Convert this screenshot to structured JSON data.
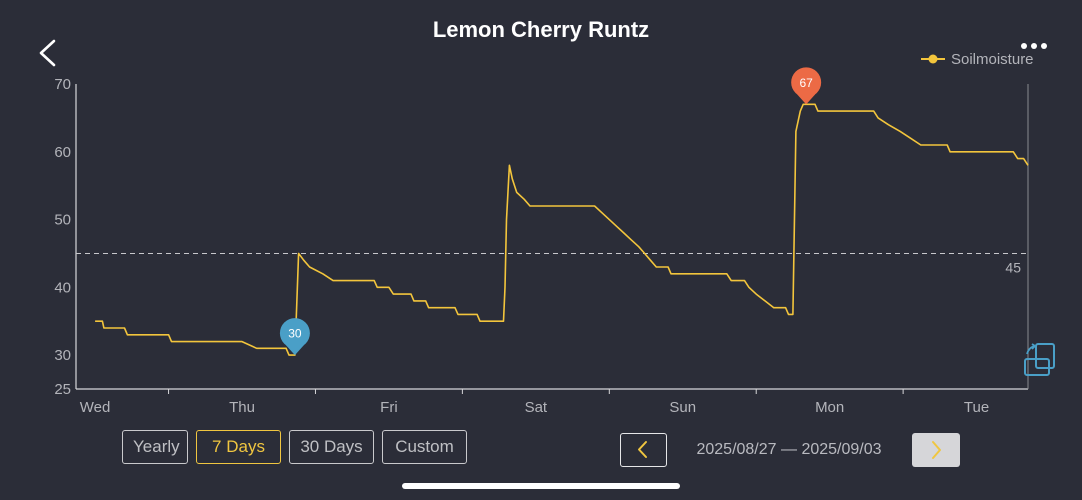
{
  "header": {
    "title": "Lemon Cherry Runtz",
    "back_icon": "chevron-left-icon",
    "more_icon": "more-dots-icon"
  },
  "chart_data": {
    "type": "line",
    "series": [
      {
        "name": "Soilmoisture",
        "color": "#f3c53c",
        "points": [
          [
            0.0,
            35
          ],
          [
            0.05,
            35
          ],
          [
            0.06,
            34
          ],
          [
            0.2,
            34
          ],
          [
            0.22,
            33
          ],
          [
            0.5,
            33
          ],
          [
            0.52,
            32
          ],
          [
            1.0,
            32
          ],
          [
            1.1,
            31
          ],
          [
            1.3,
            31
          ],
          [
            1.32,
            30
          ],
          [
            1.36,
            30
          ],
          [
            1.385,
            45
          ],
          [
            1.42,
            44
          ],
          [
            1.46,
            43
          ],
          [
            1.55,
            42
          ],
          [
            1.62,
            41
          ],
          [
            1.9,
            41
          ],
          [
            1.92,
            40
          ],
          [
            2.0,
            40
          ],
          [
            2.03,
            39
          ],
          [
            2.15,
            39
          ],
          [
            2.17,
            38
          ],
          [
            2.25,
            38
          ],
          [
            2.27,
            37
          ],
          [
            2.45,
            37
          ],
          [
            2.47,
            36
          ],
          [
            2.6,
            36
          ],
          [
            2.62,
            35
          ],
          [
            2.78,
            35
          ],
          [
            2.79,
            40
          ],
          [
            2.8,
            50
          ],
          [
            2.82,
            58
          ],
          [
            2.84,
            56
          ],
          [
            2.87,
            54
          ],
          [
            2.92,
            53
          ],
          [
            2.96,
            52
          ],
          [
            3.4,
            52
          ],
          [
            3.45,
            51
          ],
          [
            3.5,
            50
          ],
          [
            3.55,
            49
          ],
          [
            3.6,
            48
          ],
          [
            3.65,
            47
          ],
          [
            3.7,
            46
          ],
          [
            3.74,
            45
          ],
          [
            3.78,
            44
          ],
          [
            3.82,
            43
          ],
          [
            3.9,
            43
          ],
          [
            3.92,
            42
          ],
          [
            4.3,
            42
          ],
          [
            4.33,
            41
          ],
          [
            4.42,
            41
          ],
          [
            4.45,
            40
          ],
          [
            4.5,
            39
          ],
          [
            4.56,
            38
          ],
          [
            4.62,
            37
          ],
          [
            4.7,
            37
          ],
          [
            4.72,
            36
          ],
          [
            4.75,
            36
          ],
          [
            4.77,
            63
          ],
          [
            4.8,
            66
          ],
          [
            4.82,
            67
          ],
          [
            4.9,
            67
          ],
          [
            4.92,
            66
          ],
          [
            5.3,
            66
          ],
          [
            5.33,
            65
          ],
          [
            5.4,
            64
          ],
          [
            5.48,
            63
          ],
          [
            5.55,
            62
          ],
          [
            5.62,
            61
          ],
          [
            5.8,
            61
          ],
          [
            5.82,
            60
          ],
          [
            6.25,
            60
          ],
          [
            6.28,
            59
          ],
          [
            6.32,
            59
          ],
          [
            6.35,
            58
          ]
        ]
      }
    ],
    "x_tick_labels": [
      "Wed",
      "Thu",
      "Fri",
      "Sat",
      "Sun",
      "Mon",
      "Tue"
    ],
    "x_range": [
      -0.13,
      6.35
    ],
    "y_tick_labels": [
      "25",
      "30",
      "40",
      "50",
      "60",
      "70"
    ],
    "y_ticks": [
      25,
      30,
      40,
      50,
      60,
      70
    ],
    "ylim": [
      25,
      70
    ],
    "threshold": {
      "value": 45,
      "label": "45"
    },
    "min_marker": {
      "x": 1.36,
      "y": 30,
      "label": "30",
      "color": "#4a9fc7"
    },
    "max_marker": {
      "x": 4.84,
      "y": 67,
      "label": "67",
      "color": "#ec6a45"
    },
    "legend": {
      "label": "Soilmoisture",
      "position": "top-right"
    },
    "grid": false
  },
  "controls": {
    "yearly_label": "Yearly",
    "days7_label": "7 Days",
    "days30_label": "30 Days",
    "custom_label": "Custom",
    "active": "7 Days"
  },
  "nav": {
    "prev_icon": "chevron-left-icon",
    "next_icon": "chevron-right-icon",
    "date_range": "2025/08/27 — 2025/09/03"
  },
  "colors": {
    "background": "#2b2d38",
    "accent": "#f0c640",
    "line": "#f3c53c",
    "min_marker": "#4a9fc7",
    "max_marker": "#ec6a45"
  }
}
